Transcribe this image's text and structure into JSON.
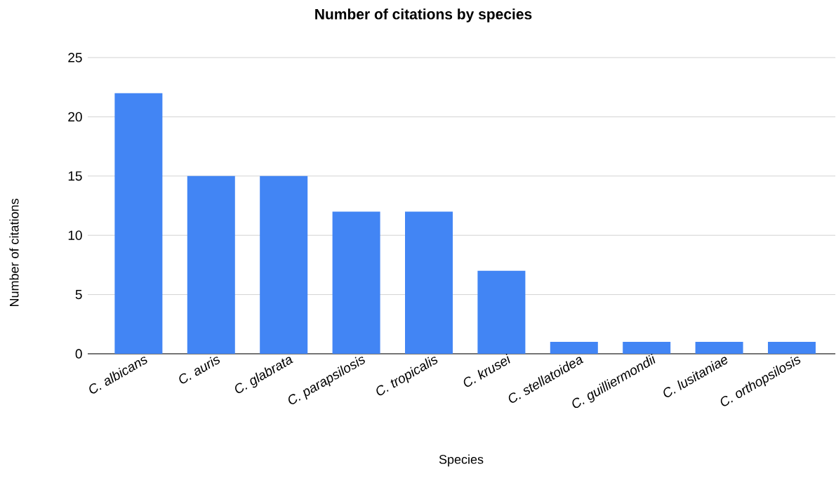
{
  "chart_data": {
    "type": "bar",
    "title": "Number of citations by species",
    "xlabel": "Species",
    "ylabel": "Number of citations",
    "categories": [
      "C. albicans",
      "C. auris",
      "C. glabrata",
      "C. parapsilosis",
      "C. tropicalis",
      "C. krusei",
      "C. stellatoidea",
      "C. guilliermondii",
      "C. lusitaniae",
      "C. orthopsilosis"
    ],
    "values": [
      22,
      15,
      15,
      12,
      12,
      7,
      1,
      1,
      1,
      1
    ],
    "color": "#4285f4",
    "ylim": [
      0,
      25
    ],
    "yticks": [
      0,
      5,
      10,
      15,
      20,
      25
    ],
    "grid": "y"
  }
}
